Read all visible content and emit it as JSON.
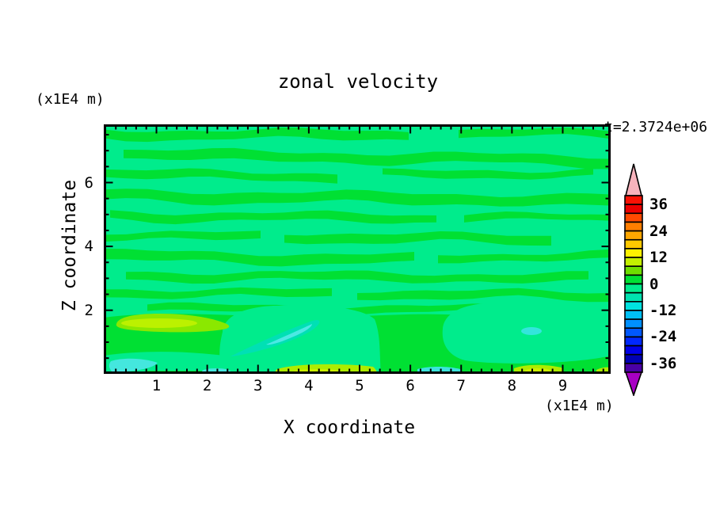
{
  "figure": {
    "title": "zonal velocity",
    "timestamp": "t=2.3724e+06",
    "x_axis": {
      "label": "X coordinate",
      "unit": "(x1E4 m)"
    },
    "y_axis": {
      "label": "Z coordinate",
      "unit": "(x1E4 m)"
    }
  },
  "chart_data": {
    "type": "heatmap",
    "subtype": "filled-contour",
    "title": "zonal velocity",
    "annotation": "t=2.3724e+06",
    "xlabel": "X coordinate",
    "x_unit": "(x1E4 m)",
    "ylabel": "Z coordinate",
    "y_unit": "(x1E4 m)",
    "xlim": [
      0,
      9.95
    ],
    "ylim": [
      0,
      7.85
    ],
    "x_major_ticks": [
      1,
      2,
      3,
      4,
      5,
      6,
      7,
      8,
      9
    ],
    "x_minor_step": 0.2,
    "y_major_ticks": [
      2,
      4,
      6
    ],
    "y_minor_step": 0.5,
    "grid": false,
    "legend_position": "right-colorbar",
    "colorbar": {
      "min": -40,
      "max": 40,
      "step": 4,
      "labels": [
        "36",
        "24",
        "12",
        "0",
        "-12",
        "-24",
        "-36"
      ],
      "segment_colors_top_to_bottom": [
        "#FA1205",
        "#EC0000",
        "#FF4A00",
        "#FF7E00",
        "#FFA600",
        "#FFC900",
        "#FFF200",
        "#C4F000",
        "#6EDE00",
        "#00E033",
        "#00EC8C",
        "#00E2B0",
        "#00E2E0",
        "#00C0F5",
        "#0090FF",
        "#0058FF",
        "#0028FF",
        "#0000E8",
        "#0000B4",
        "#4A00A5"
      ],
      "over_arrow_color": "#F7B3BC",
      "under_arrow_color": "#A800C4"
    },
    "field_summary": "Zonal velocity u(x,z); most of the domain alternates in thin wavy horizontal bands between the 0..4 band (bright green) and the -4..0 band (spring green), bands tilting slightly downward to the right.",
    "features": [
      {
        "kind": "positive-patch",
        "value_band": "8..12",
        "desc": "yellow-green maximum blob",
        "x": [
          0.3,
          3.4
        ],
        "z": [
          1.5,
          2.1
        ]
      },
      {
        "kind": "negative-patch",
        "value_band": "-12..-8",
        "desc": "cyan wedge tapering down-left",
        "x": [
          2.5,
          4.4
        ],
        "z": [
          0.6,
          1.8
        ]
      },
      {
        "kind": "negative-patch",
        "value_band": "-12..-8",
        "desc": "small cyan spot",
        "x": [
          8.2,
          8.8
        ],
        "z": [
          1.1,
          1.5
        ]
      },
      {
        "kind": "negative-patch",
        "value_band": "-12..-8",
        "desc": "cyan lens near floor, lower-left",
        "x": [
          0.2,
          1.1
        ],
        "z": [
          0.1,
          0.35
        ]
      },
      {
        "kind": "positive-strip",
        "value_band": "8..12",
        "desc": "chartreuse strip on bottom edge",
        "x": [
          3.4,
          5.35
        ],
        "z": [
          0,
          0.2
        ]
      },
      {
        "kind": "negative-strip",
        "value_band": "-12..-8",
        "desc": "cyan strip on bottom edge",
        "x": [
          6.15,
          7.0
        ],
        "z": [
          0,
          0.15
        ]
      },
      {
        "kind": "positive-strip",
        "value_band": "8..12",
        "desc": "chartreuse strip on bottom edge",
        "x": [
          8.0,
          9.0
        ],
        "z": [
          0,
          0.2
        ]
      },
      {
        "kind": "positive-strip",
        "value_band": "8..12",
        "desc": "chartreuse sliver, bottom-right corner",
        "x": [
          9.65,
          9.95
        ],
        "z": [
          0,
          0.12
        ]
      }
    ]
  },
  "colors": {
    "background": "#FFFFFF",
    "text": "#000000",
    "frame": "#000000",
    "field_positive_band": "#00E033",
    "field_negative_band": "#00EC8C",
    "blob_outer": "#8BE800",
    "blob_core": "#BCF100",
    "wedge_outer": "#00E0B4",
    "wedge_core": "#4CE8E4",
    "cyan_strip": "#3BE4DC",
    "chartreuse_strip": "#AEEC00",
    "chartreuse_core": "#CCF000"
  }
}
